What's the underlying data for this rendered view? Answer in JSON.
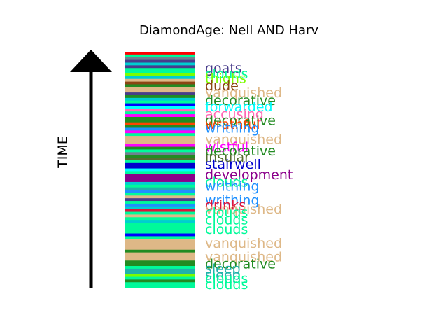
{
  "chart_data": {
    "type": "bar",
    "title": "DiamondAge: Nell AND Harv",
    "ylabel": "TIME",
    "colors": {
      "goats": "#483d8b",
      "clouds": "#00fa9a",
      "thighs": "#7cfc00",
      "dude": "#8b4513",
      "vanquished": "#deb887",
      "decorative": "#228b22",
      "forwarded": "#00ffff",
      "accusing": "#ff69b4",
      "wrathful": "#ff4500",
      "writhing": "#1e90ff",
      "wistful": "#ff00ff",
      "insular": "#556b2f",
      "stairwell": "#0000cd",
      "development": "#8b008b",
      "drinks": "#dc143c",
      "sleep": "#20b2aa",
      "red": "#ff0000",
      "blue": "#0000ff",
      "gray": "#708090",
      "cyan2": "#00ced1"
    },
    "stripes": [
      "red",
      "clouds",
      "gray",
      "goats",
      "cyan2",
      "goats",
      "clouds",
      "clouds",
      "thighs",
      "cyan2",
      "vanquished",
      "dude",
      "decorative",
      "vanquished",
      "vanquished",
      "goats",
      "decorative",
      "cyan2",
      "clouds",
      "blue",
      "forwarded",
      "accusing",
      "clouds",
      "wistful",
      "decorative",
      "decorative",
      "wrathful",
      "decorative",
      "writhing",
      "wistful",
      "clouds",
      "vanquished",
      "vanquished",
      "vanquished",
      "wistful",
      "decorative",
      "clouds",
      "gray",
      "decorative",
      "insular",
      "clouds",
      "stairwell",
      "stairwell",
      "forwarded",
      "clouds",
      "development",
      "development",
      "development",
      "cyan2",
      "clouds",
      "sleep",
      "writhing",
      "clouds",
      "vanquished",
      "goats",
      "clouds",
      "writhing",
      "cyan2",
      "drinks",
      "clouds",
      "vanquished",
      "clouds",
      "cyan2",
      "clouds",
      "clouds",
      "clouds",
      "clouds",
      "blue",
      "clouds",
      "vanquished",
      "vanquished",
      "vanquished",
      "vanquished",
      "decorative",
      "vanquished",
      "vanquished",
      "vanquished",
      "decorative",
      "decorative",
      "clouds",
      "sleep",
      "sleep",
      "thighs",
      "clouds",
      "decorative",
      "clouds",
      "clouds"
    ],
    "words": [
      {
        "text": "goats",
        "key": "goats",
        "pos": 0.068
      },
      {
        "text": "clouds",
        "key": "clouds",
        "pos": 0.092
      },
      {
        "text": "thighs",
        "key": "thighs",
        "pos": 0.112
      },
      {
        "text": "dude",
        "key": "dude",
        "pos": 0.142
      },
      {
        "text": "vanquished",
        "key": "vanquished",
        "pos": 0.172
      },
      {
        "text": "decorative",
        "key": "decorative",
        "pos": 0.205
      },
      {
        "text": "forwarded",
        "key": "forwarded",
        "pos": 0.232
      },
      {
        "text": "accusing",
        "key": "accusing",
        "pos": 0.262
      },
      {
        "text": "decorative",
        "key": "decorative",
        "pos": 0.29
      },
      {
        "text": "wrathful",
        "key": "wrathful",
        "pos": 0.305
      },
      {
        "text": "writhing",
        "key": "writhing",
        "pos": 0.322
      },
      {
        "text": "vanquished",
        "key": "vanquished",
        "pos": 0.37
      },
      {
        "text": "wistful",
        "key": "wistful",
        "pos": 0.402
      },
      {
        "text": "decorative",
        "key": "decorative",
        "pos": 0.418
      },
      {
        "text": "insular",
        "key": "insular",
        "pos": 0.445
      },
      {
        "text": "stairwell",
        "key": "stairwell",
        "pos": 0.475
      },
      {
        "text": "development",
        "key": "development",
        "pos": 0.52
      },
      {
        "text": "clouds",
        "key": "clouds",
        "pos": 0.55
      },
      {
        "text": "writhing",
        "key": "writhing",
        "pos": 0.568
      },
      {
        "text": "writhing",
        "key": "writhing",
        "pos": 0.628
      },
      {
        "text": "drinks",
        "key": "drinks",
        "pos": 0.648
      },
      {
        "text": "vanquished",
        "key": "vanquished",
        "pos": 0.665
      },
      {
        "text": "clouds",
        "key": "clouds",
        "pos": 0.68
      },
      {
        "text": "clouds",
        "key": "clouds",
        "pos": 0.71
      },
      {
        "text": "clouds",
        "key": "clouds",
        "pos": 0.75
      },
      {
        "text": "vanquished",
        "key": "vanquished",
        "pos": 0.81
      },
      {
        "text": "vanquished",
        "key": "vanquished",
        "pos": 0.868
      },
      {
        "text": "decorative",
        "key": "decorative",
        "pos": 0.898
      },
      {
        "text": "sleep",
        "key": "sleep",
        "pos": 0.918
      },
      {
        "text": "sleep",
        "key": "sleep",
        "pos": 0.945
      },
      {
        "text": "clouds",
        "key": "clouds",
        "pos": 0.96
      },
      {
        "text": "clouds",
        "key": "clouds",
        "pos": 0.985
      }
    ]
  }
}
